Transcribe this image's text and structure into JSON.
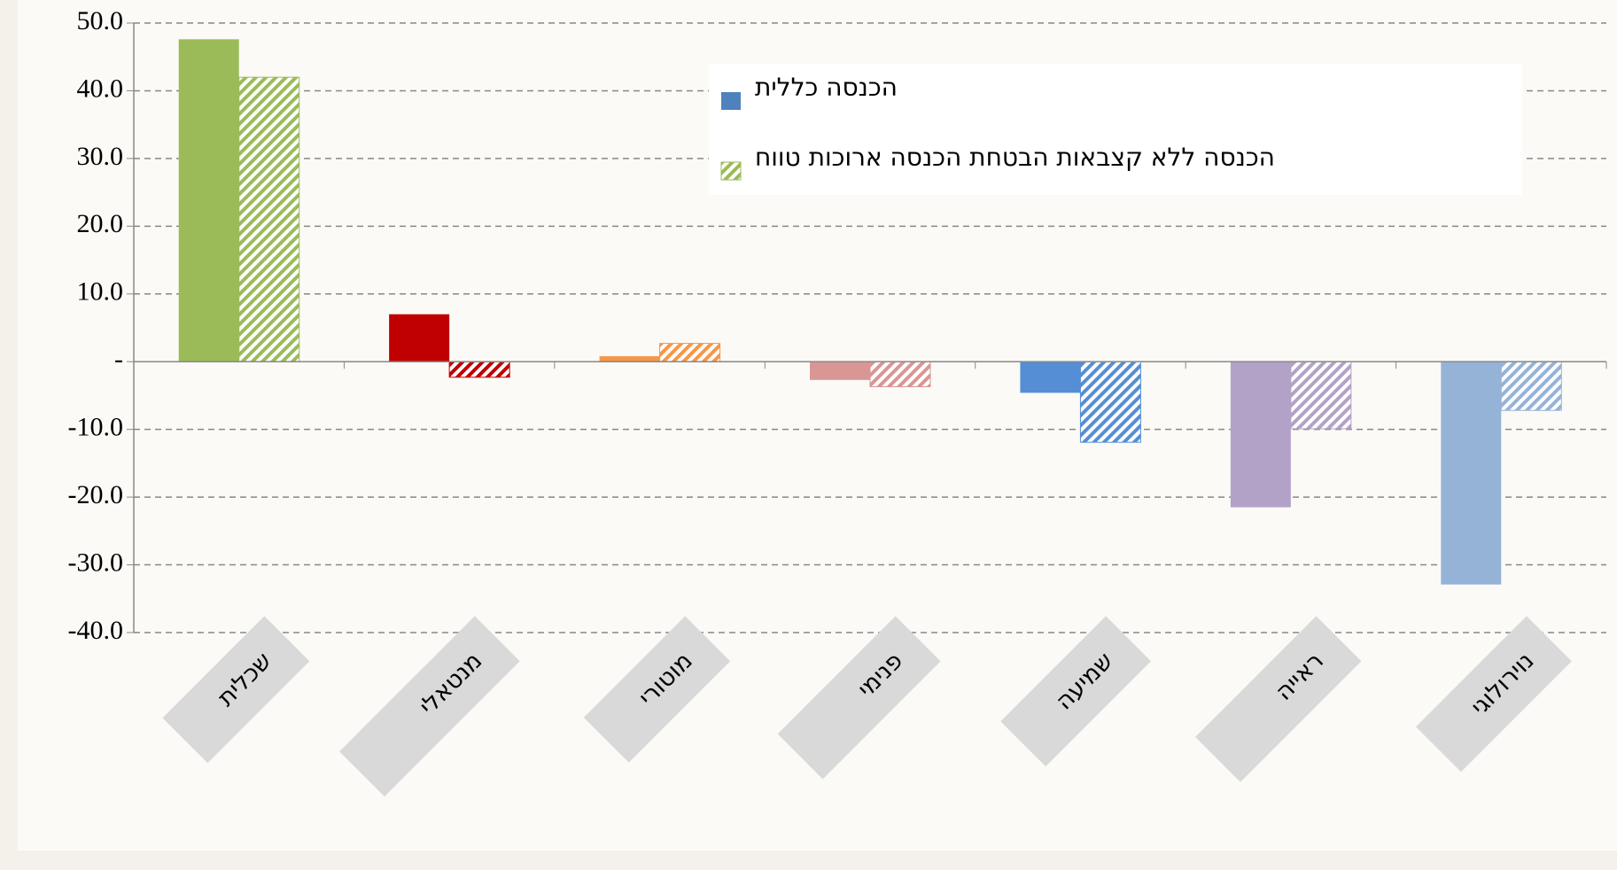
{
  "chart_data": {
    "type": "bar",
    "categories": [
      "שכלית",
      "מנטאלי",
      "מוטורי",
      "פנימי",
      "שמיעה",
      "ראייה",
      "נוירולוגי"
    ],
    "series": [
      {
        "name": "הכנסה כללית",
        "color": "#4f81bd",
        "hatched": false,
        "colors": [
          "#9bbb59",
          "#c00000",
          "#f79646",
          "#d99694",
          "#558ed5",
          "#b3a2c7",
          "#95b3d7"
        ],
        "values": [
          47.6,
          7.0,
          0.8,
          -2.7,
          -4.6,
          -21.5,
          -32.9
        ]
      },
      {
        "name": "הכנסה ללא קצבאות הבטחת הכנסה ארוכות טווח",
        "color": "#9bbb59",
        "hatched": true,
        "colors": [
          "#9bbb59",
          "#c00000",
          "#f79646",
          "#d99694",
          "#558ed5",
          "#b3a2c7",
          "#95b3d7"
        ],
        "values": [
          42.0,
          -2.3,
          2.7,
          -3.7,
          -11.9,
          -9.9,
          -7.2
        ]
      }
    ],
    "ylim": [
      -40,
      50
    ],
    "yticks": [
      {
        "value": -40,
        "label": "-40.0"
      },
      {
        "value": -30,
        "label": "-30.0"
      },
      {
        "value": -20,
        "label": "-20.0"
      },
      {
        "value": -10,
        "label": "-10.0"
      },
      {
        "value": 0,
        "label": "-"
      },
      {
        "value": 10,
        "label": "10.0"
      },
      {
        "value": 20,
        "label": "20.0"
      },
      {
        "value": 30,
        "label": "30.0"
      },
      {
        "value": 40,
        "label": "40.0"
      },
      {
        "value": 50,
        "label": "50.0"
      }
    ],
    "grid": true
  }
}
